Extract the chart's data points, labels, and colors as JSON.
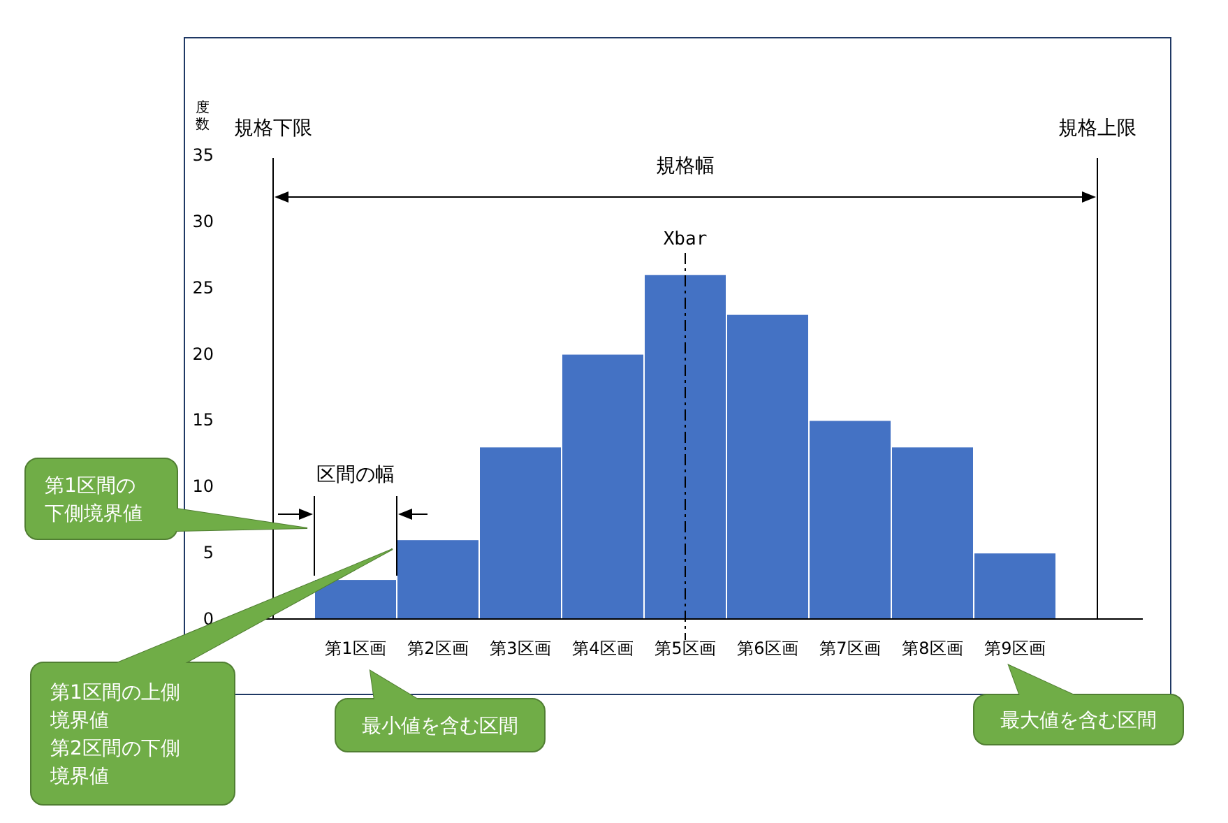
{
  "chart_data": {
    "type": "bar",
    "categories": [
      "第1区画",
      "第2区画",
      "第3区画",
      "第4区画",
      "第5区画",
      "第6区画",
      "第7区画",
      "第8区画",
      "第9区画"
    ],
    "values": [
      3,
      6,
      13,
      20,
      26,
      23,
      15,
      13,
      5
    ],
    "color": "#4472c4",
    "ylabel": "度数",
    "ylim": [
      0,
      35
    ],
    "yticks": [
      0,
      5,
      10,
      15,
      20,
      25,
      30,
      35
    ],
    "grid": false,
    "ref_lines": [
      {
        "axis": "x",
        "value": "第5区画",
        "label": "Xbar",
        "color": "#000000",
        "line_style": "dashed"
      }
    ],
    "annotations": [
      "規格下限",
      "規格上限",
      "規格幅",
      "区間の幅",
      "第1区間の下側境界値",
      "第1区間の上側境界値",
      "第2区間の下側境界値",
      "最小値を含む区間",
      "最大値を含む区間"
    ]
  }
}
